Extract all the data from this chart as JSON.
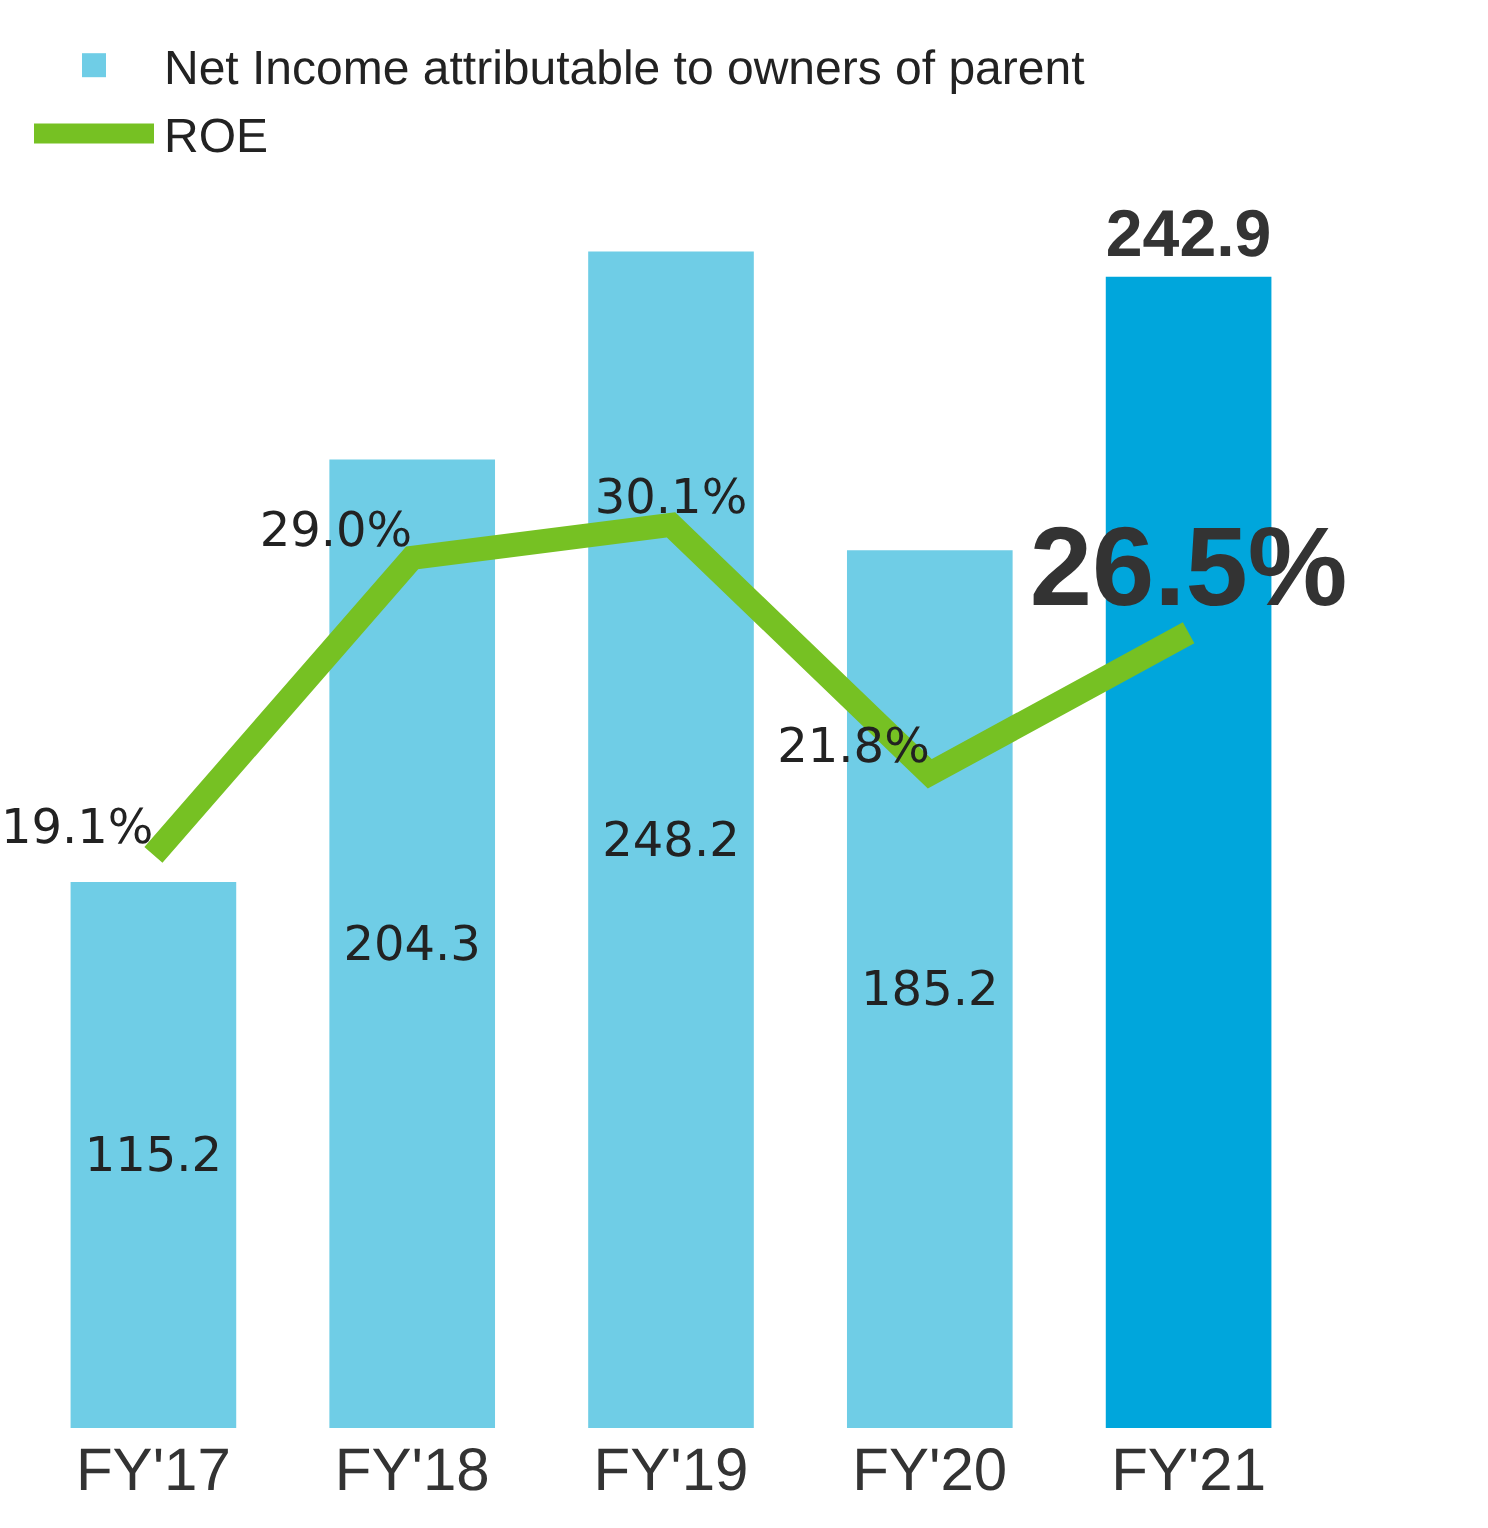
{
  "chart_data": {
    "type": "bar",
    "categories": [
      "FY'17",
      "FY'18",
      "FY'19",
      "FY'20",
      "FY'21"
    ],
    "series": [
      {
        "name": "Net Income attributable to owners of parent",
        "colors": [
          "#6fcde6",
          "#6fcde6",
          "#6fcde6",
          "#6fcde6",
          "#00a6dc"
        ],
        "values": [
          115.2,
          204.3,
          248.2,
          185.2,
          242.9
        ],
        "value_labels": [
          "115.2",
          "204.3",
          "248.2",
          "185.2",
          "242.9"
        ]
      },
      {
        "name": "ROE",
        "type": "line",
        "axis": "y2",
        "color": "#76c123",
        "values": [
          19.1,
          29.0,
          30.1,
          21.8,
          26.5
        ],
        "value_labels": [
          "19.1%",
          "29.0%",
          "30.1%",
          "21.8%",
          "26.5%"
        ]
      }
    ],
    "tick_labels": "x",
    "grid": false,
    "legend": "top left",
    "marker": "none",
    "line_style": "solid"
  }
}
